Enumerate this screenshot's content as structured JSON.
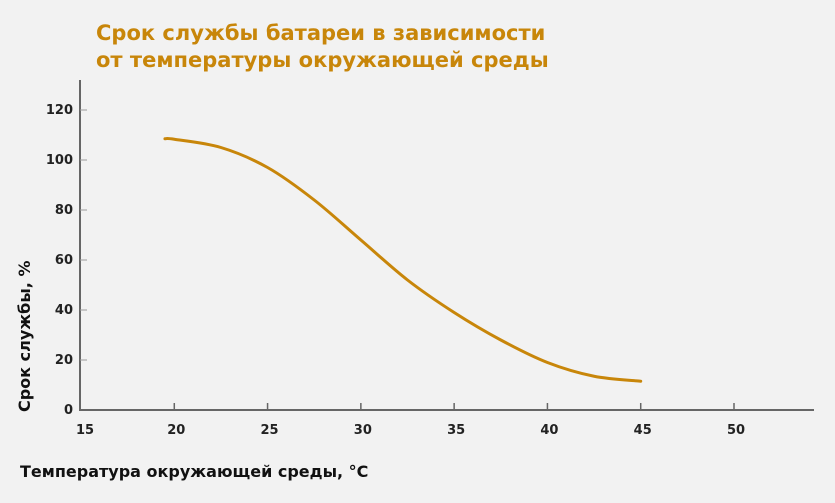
{
  "chart_data": {
    "type": "line",
    "title": "Срок службы батареи в зависимости\nот температуры окружающей среды",
    "xlabel": "Температура окружающей среды, °C",
    "ylabel": "Срок службы, %",
    "xlim": [
      15,
      54
    ],
    "ylim": [
      0,
      130
    ],
    "xticks": [
      15,
      20,
      25,
      30,
      35,
      40,
      45,
      50
    ],
    "yticks": [
      0,
      20,
      40,
      60,
      80,
      100,
      120
    ],
    "grid": false,
    "series": [
      {
        "color": "#c8860a",
        "x": [
          19.5,
          20,
          22.5,
          25,
          27.5,
          30,
          32.5,
          35,
          37.5,
          40,
          42.5,
          45
        ],
        "y": [
          108.5,
          108.3,
          105,
          97,
          84,
          68,
          52,
          39,
          28,
          19,
          13.5,
          11.5
        ]
      }
    ],
    "colors": {
      "title": "#c8860a",
      "axis": "#666666",
      "background": "#f2f2f2"
    }
  }
}
